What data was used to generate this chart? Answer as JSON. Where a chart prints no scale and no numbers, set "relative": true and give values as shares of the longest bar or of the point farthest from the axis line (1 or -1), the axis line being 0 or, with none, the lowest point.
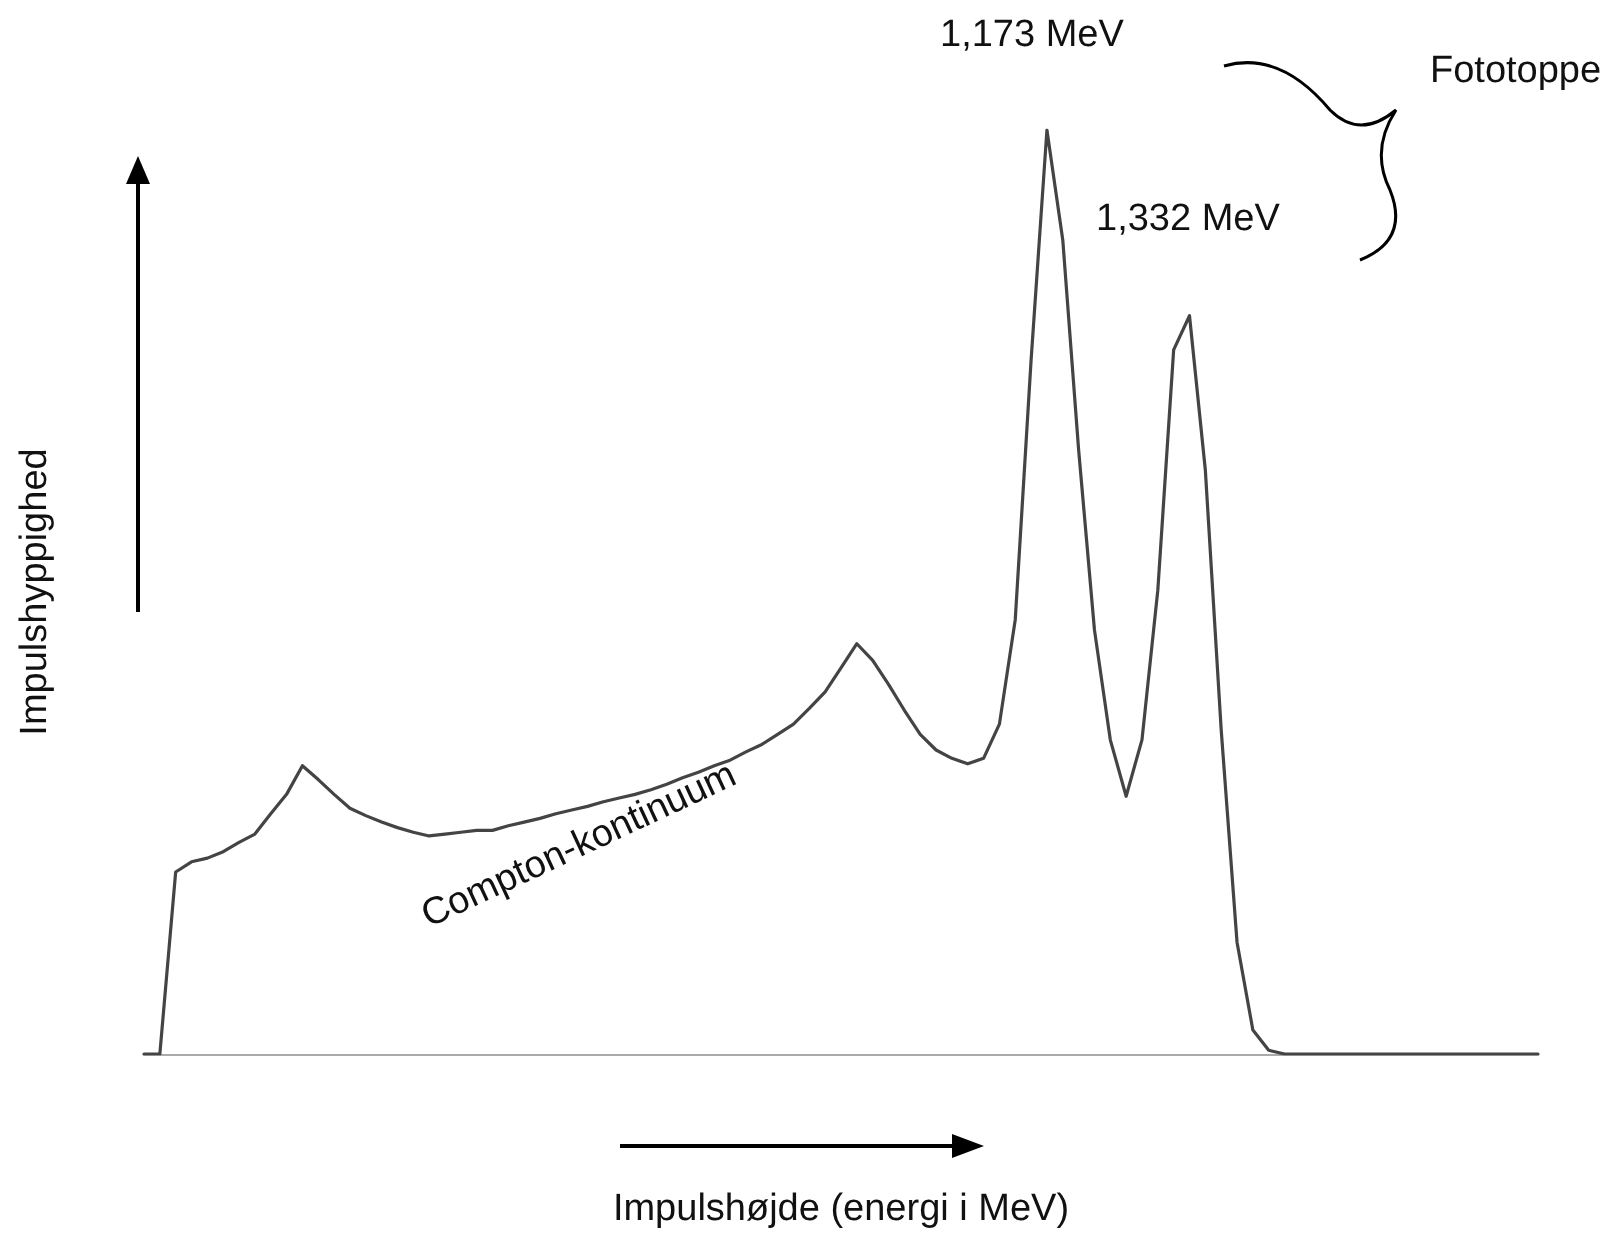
{
  "chart_data": {
    "type": "line",
    "relative": true,
    "xlabel": "Impulshøjde (energi i MeV)",
    "ylabel": "Impulshyppighed",
    "annotations": [
      "1,173 MeV",
      "1,332 MeV",
      "Fototoppe",
      "Compton-kontinuum"
    ],
    "categories": [
      null,
      null,
      null,
      null,
      null,
      null,
      null,
      null,
      null,
      null,
      null,
      null,
      null,
      null,
      null,
      null,
      null,
      null,
      null,
      null,
      null,
      null,
      null,
      null,
      null,
      null,
      null,
      null,
      null,
      null,
      null,
      null,
      null,
      null,
      null,
      null,
      null,
      null,
      null,
      null,
      null,
      null,
      null,
      null,
      null,
      null,
      null,
      null,
      null,
      null,
      null,
      null,
      null,
      null,
      null,
      null,
      null,
      null,
      null,
      null,
      null,
      null,
      null,
      null,
      null,
      null,
      null,
      null,
      null,
      null,
      null,
      null,
      null,
      null,
      null,
      null,
      null,
      null,
      null,
      null,
      null,
      null,
      null,
      null,
      null,
      null,
      null,
      null,
      null
    ],
    "series": [
      {
        "color": "#444444",
        "values": [
          0,
          0,
          0.197,
          0.208,
          0.212,
          0.219,
          0.229,
          0.238,
          0.26,
          0.281,
          0.312,
          0.297,
          0.281,
          0.266,
          0.258,
          0.251,
          0.245,
          0.24,
          0.236,
          0.238,
          0.24,
          0.242,
          0.242,
          0.247,
          0.251,
          0.255,
          0.26,
          0.264,
          0.268,
          0.273,
          0.277,
          0.281,
          0.286,
          0.292,
          0.299,
          0.305,
          0.312,
          0.318,
          0.327,
          0.335,
          0.346,
          0.357,
          0.374,
          0.392,
          0.418,
          0.444,
          0.426,
          0.4,
          0.372,
          0.346,
          0.329,
          0.32,
          0.314,
          0.32,
          0.357,
          0.47,
          0.751,
          1,
          0.881,
          0.654,
          0.459,
          0.34,
          0.279,
          0.34,
          0.502,
          0.762,
          0.799,
          0.632,
          0.351,
          0.121,
          0.026,
          0.004,
          0,
          0,
          0,
          0,
          0,
          0,
          0,
          0,
          0,
          0,
          0,
          0,
          0,
          0,
          0,
          0,
          0
        ]
      }
    ],
    "marker": "none",
    "line_style": "solid"
  }
}
